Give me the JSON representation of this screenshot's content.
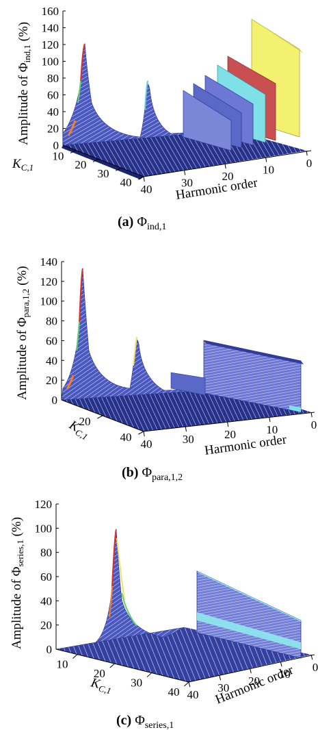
{
  "chart_data": [
    {
      "type": "surface",
      "panel": "a",
      "caption_tag": "(a)",
      "caption_symbol": "Φ",
      "caption_sub": "ind,1",
      "ylabel_prefix": "Amplitude of ",
      "ylabel_symbol": "Φ",
      "ylabel_sub": "ind,1",
      "ylabel_suffix": " (%)",
      "xlabel": "Harmonic order",
      "klabel_main": "K",
      "klabel_sub": "C,1",
      "z_ticks": [
        "0",
        "20",
        "40",
        "60",
        "80",
        "100",
        "120",
        "140",
        "160"
      ],
      "zlim": [
        0,
        160
      ],
      "k_ticks": [
        "10",
        "20",
        "30",
        "40"
      ],
      "h_ticks": [
        "40",
        "30",
        "20",
        "10",
        "0"
      ],
      "series": [
        {
          "name": "main resonance ridge (K_C,1 ≈ 5)",
          "peak": 120
        },
        {
          "name": "secondary resonance ridge (K_C,1 ≈ 10)",
          "peak": 80
        },
        {
          "name": "characteristic harmonic plateaus",
          "values": [
            100,
            85,
            70,
            60,
            55
          ]
        }
      ]
    },
    {
      "type": "surface",
      "panel": "b",
      "caption_tag": "(b)",
      "caption_symbol": "Φ",
      "caption_sub": "para,1,2",
      "ylabel_prefix": "Amplitude of ",
      "ylabel_symbol": "Φ",
      "ylabel_sub": "para,1,2",
      "ylabel_suffix": " (%)",
      "xlabel": "Harmonic order",
      "klabel_main": "K",
      "klabel_sub": "C,1",
      "z_ticks": [
        "0",
        "20",
        "40",
        "60",
        "80",
        "100",
        "120",
        "140"
      ],
      "zlim": [
        0,
        140
      ],
      "k_ticks": [
        "20",
        "40"
      ],
      "h_ticks": [
        "40",
        "30",
        "20",
        "10",
        "0"
      ],
      "series": [
        {
          "name": "main resonance ridge",
          "peak": 130
        },
        {
          "name": "secondary resonance ridge",
          "peak": 65
        },
        {
          "name": "characteristic harmonic plateau",
          "values": [
            60
          ]
        }
      ]
    },
    {
      "type": "surface",
      "panel": "c",
      "caption_tag": "(c)",
      "caption_symbol": "Φ",
      "caption_sub": "series,1",
      "ylabel_prefix": "Amplitude of ",
      "ylabel_symbol": "Φ",
      "ylabel_sub": "series,1",
      "ylabel_suffix": " (%)",
      "xlabel": "Harmonic order",
      "klabel_main": "K",
      "klabel_sub": "C,1",
      "z_ticks": [
        "0",
        "20",
        "40",
        "60",
        "80",
        "100",
        "120"
      ],
      "zlim": [
        0,
        120
      ],
      "k_ticks": [
        "10",
        "20",
        "30",
        "40"
      ],
      "h_ticks": [
        "40",
        "30",
        "20",
        "10",
        "0"
      ],
      "series": [
        {
          "name": "main resonance ridge",
          "peak": 112
        },
        {
          "name": "characteristic harmonic plateau",
          "values": [
            65
          ]
        }
      ]
    }
  ],
  "colors": {
    "mesh_dark": "#1e2a7a",
    "mesh_mid": "#5a68c8",
    "mesh_light": "#ffffff",
    "plateau_blue": "#6c78d4",
    "plateau_cyan": "#7fe0e8",
    "plateau_red": "#c85050",
    "plateau_yellow": "#f4f070",
    "ridge_red": "#d83030",
    "ridge_green": "#60d070"
  }
}
